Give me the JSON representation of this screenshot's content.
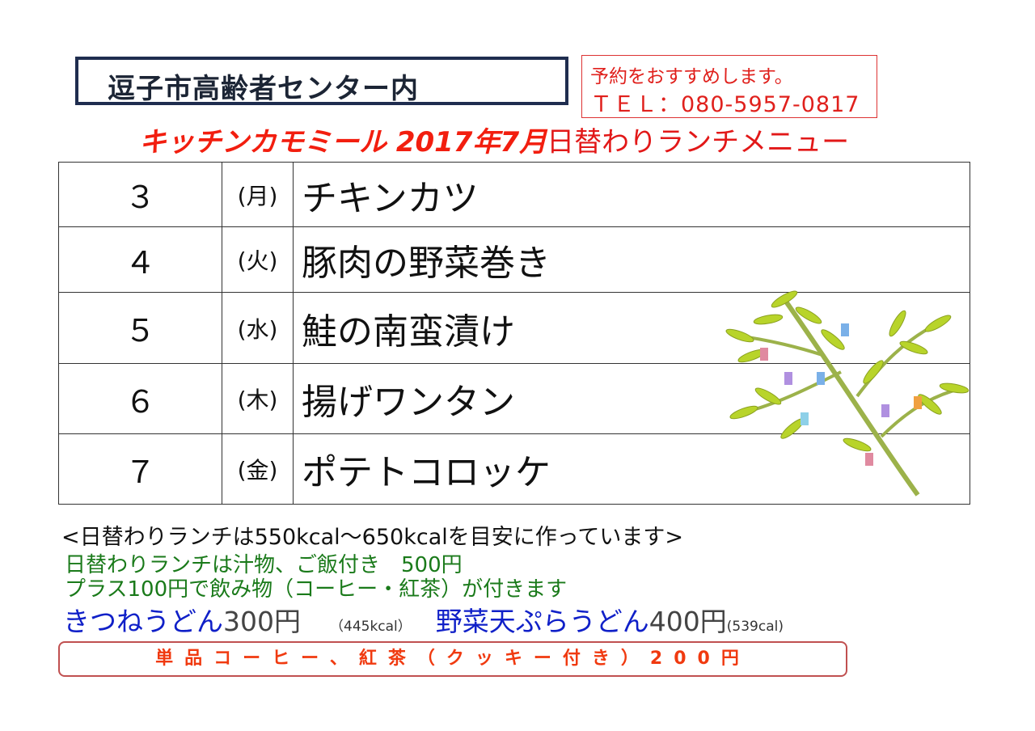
{
  "header": {
    "venue": "逗子市高齢者センター内",
    "reservation_note": "予約をおすすめします。",
    "tel": "ＴＥＬ：080-5957-0817",
    "brand": "キッチンカモミール 2017年7月",
    "title_rest": "日替わりランチメニュー"
  },
  "menu": [
    {
      "day": "３",
      "weekday": "(月)",
      "dish": "チキンカツ"
    },
    {
      "day": "４",
      "weekday": "(火)",
      "dish": "豚肉の野菜巻き"
    },
    {
      "day": "５",
      "weekday": "(水)",
      "dish": "鮭の南蛮漬け"
    },
    {
      "day": "６",
      "weekday": "(木)",
      "dish": "揚げワンタン"
    },
    {
      "day": "７",
      "weekday": "(金)",
      "dish": "ポテトコロッケ"
    }
  ],
  "footer": {
    "calorie_note": "<日替わりランチは550kcal～650kcalを目安に作っています>",
    "lunch_price": "日替わりランチは汁物、ご飯付き　500円",
    "drink_note": "プラス100円で飲み物（コーヒー・紅茶）が付きます",
    "kitsune_name": "きつねうどん",
    "kitsune_price": "300円",
    "kitsune_kcal": "（445kcal）",
    "tempura_name": "野菜天ぷらうどん",
    "tempura_price": "400円",
    "tempura_kcal": "(539cal)",
    "single_item": "単品コーヒー、紅茶（クッキー付き）200円"
  },
  "decoration": {
    "icon": "tanabata-bamboo-icon"
  },
  "colors": {
    "red": "#f21e0f",
    "navy": "#1f2d4f",
    "green": "#1a7a1a",
    "blue": "#1020c8"
  }
}
